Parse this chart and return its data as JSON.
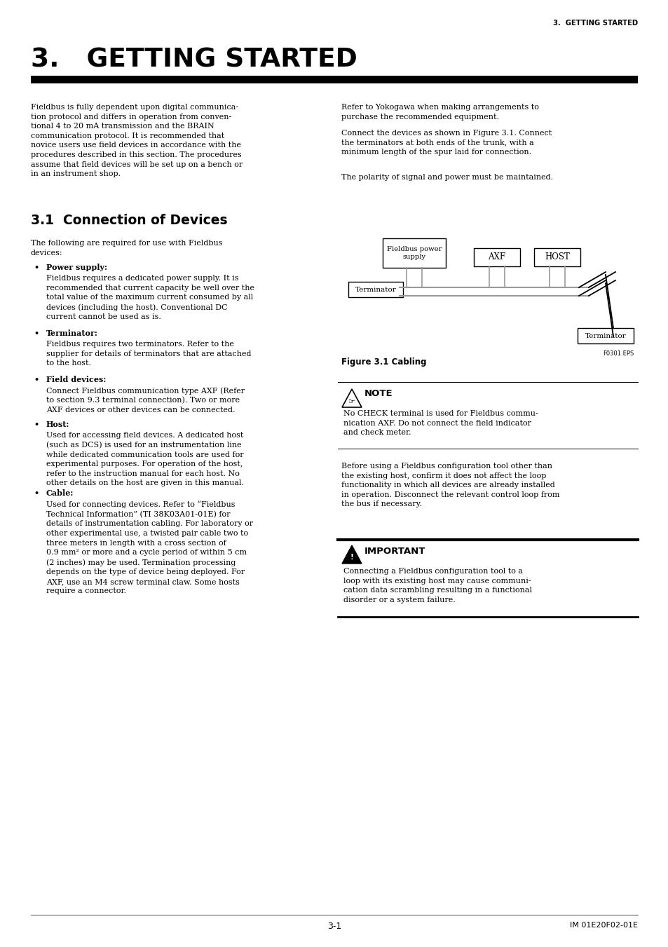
{
  "page_bg": "#ffffff",
  "header_text": "3.  GETTING STARTED",
  "title_text": "3.   GETTING STARTED",
  "section_heading": "3.1  Connection of Devices",
  "footer_left": "3-1",
  "footer_right": "IM 01E20F02-01E",
  "intro_para": "Fieldbus is fully dependent upon digital communica-\ntion protocol and differs in operation from conven-\ntional 4 to 20 mA transmission and the BRAIN\ncommunication protocol. It is recommended that\nnovice users use field devices in accordance with the\nprocedures described in this section. The procedures\nassume that field devices will be set up on a bench or\nin an instrument shop.",
  "following_para": "The following are required for use with Fieldbus\ndevices:",
  "bullet_power_head": "Power supply:",
  "bullet_power_body": "Fieldbus requires a dedicated power supply. It is\nrecommended that current capacity be well over the\ntotal value of the maximum current consumed by all\ndevices (including the host). Conventional DC\ncurrent cannot be used as is.",
  "bullet_term_head": "Terminator:",
  "bullet_term_body": "Fieldbus requires two terminators. Refer to the\nsupplier for details of terminators that are attached\nto the host.",
  "bullet_field_head": "Field devices:",
  "bullet_field_body": "Connect Fieldbus communication type AXF (Refer\nto section 9.3 terminal connection). Two or more\nAXF devices or other devices can be connected.",
  "bullet_host_head": "Host:",
  "bullet_host_body": "Used for accessing field devices. A dedicated host\n(such as DCS) is used for an instrumentation line\nwhile dedicated communication tools are used for\nexperimental purposes. For operation of the host,\nrefer to the instruction manual for each host. No\nother details on the host are given in this manual.",
  "bullet_cable_head": "Cable:",
  "bullet_cable_body": "Used for connecting devices. Refer to “Fieldbus\nTechnical Information” (TI 38K03A01-01E) for\ndetails of instrumentation cabling. For laboratory or\nother experimental use, a twisted pair cable two to\nthree meters in length with a cross section of\n0.9 mm² or more and a cycle period of within 5 cm\n(2 inches) may be used. Termination processing\ndepends on the type of device being deployed. For\nAXF, use an M4 screw terminal claw. Some hosts\nrequire a connector.",
  "right_para1": "Refer to Yokogawa when making arrangements to\npurchase the recommended equipment.",
  "right_para2": "Connect the devices as shown in Figure 3.1. Connect\nthe terminators at both ends of the trunk, with a\nminimum length of the spur laid for connection.",
  "right_para3": "The polarity of signal and power must be maintained.",
  "figure_caption": "Figure 3.1 Cabling",
  "figure_eps_label": "F0301.EPS",
  "note_heading": "NOTE",
  "note_text": "No CHECK terminal is used for Fieldbus commu-\nnication AXF. Do not connect the field indicator\nand check meter.",
  "before_using": "Before using a Fieldbus configuration tool other than\nthe existing host, confirm it does not affect the loop\nfunctionality in which all devices are already installed\nin operation. Disconnect the relevant control loop from\nthe bus if necessary.",
  "important_heading": "IMPORTANT",
  "important_text": "Connecting a Fieldbus configuration tool to a\nloop with its existing host may cause communi-\ncation data scrambling resulting in a functional\ndisorder or a system failure."
}
